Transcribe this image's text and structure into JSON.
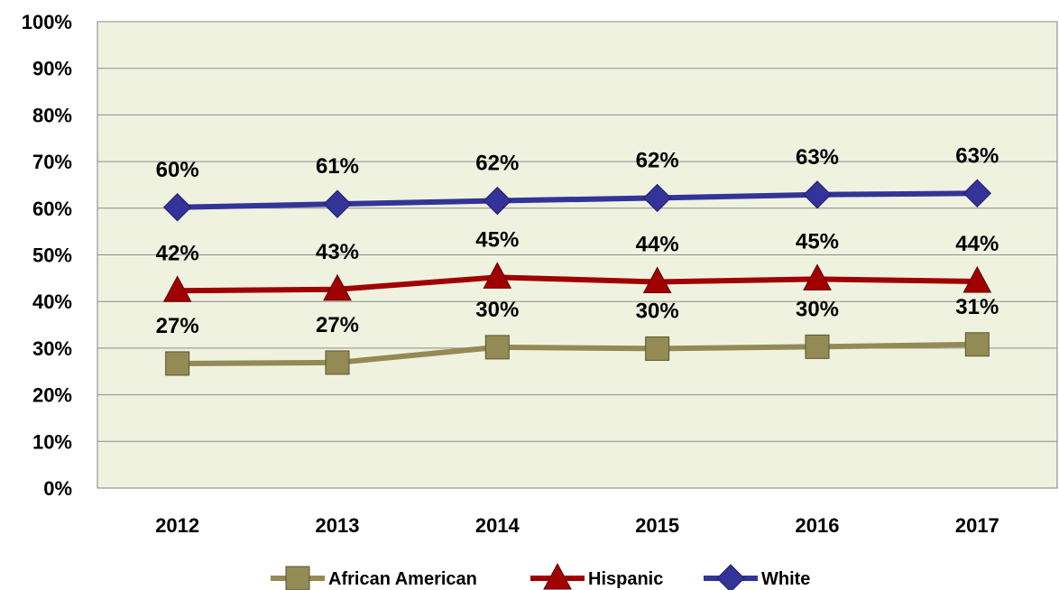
{
  "chart_data": {
    "type": "line",
    "title": "",
    "xlabel": "",
    "ylabel": "",
    "categories": [
      "2012",
      "2013",
      "2014",
      "2015",
      "2016",
      "2017"
    ],
    "ylim": [
      0,
      100
    ],
    "yticks": [
      0,
      10,
      20,
      30,
      40,
      50,
      60,
      70,
      80,
      90,
      100
    ],
    "ytick_labels": [
      "0%",
      "10%",
      "20%",
      "30%",
      "40%",
      "50%",
      "60%",
      "70%",
      "80%",
      "90%",
      "100%"
    ],
    "grid": true,
    "legend_position": "bottom",
    "plot_background": "#f0f2e0",
    "series": [
      {
        "name": "African American",
        "key": "african-american",
        "color": "#948a54",
        "marker": "square",
        "values": [
          26.7,
          26.9,
          30.2,
          29.9,
          30.3,
          30.8
        ],
        "labels": [
          "27%",
          "27%",
          "30%",
          "30%",
          "30%",
          "31%"
        ]
      },
      {
        "name": "Hispanic",
        "key": "hispanic",
        "color": "#a00000",
        "marker": "triangle",
        "values": [
          42.3,
          42.6,
          45.2,
          44.2,
          44.8,
          44.3
        ],
        "labels": [
          "42%",
          "43%",
          "45%",
          "44%",
          "45%",
          "44%"
        ]
      },
      {
        "name": "White",
        "key": "white",
        "color": "#333399",
        "marker": "diamond",
        "values": [
          60.2,
          60.9,
          61.6,
          62.2,
          62.9,
          63.2
        ],
        "labels": [
          "60%",
          "61%",
          "62%",
          "62%",
          "63%",
          "63%"
        ]
      }
    ]
  }
}
